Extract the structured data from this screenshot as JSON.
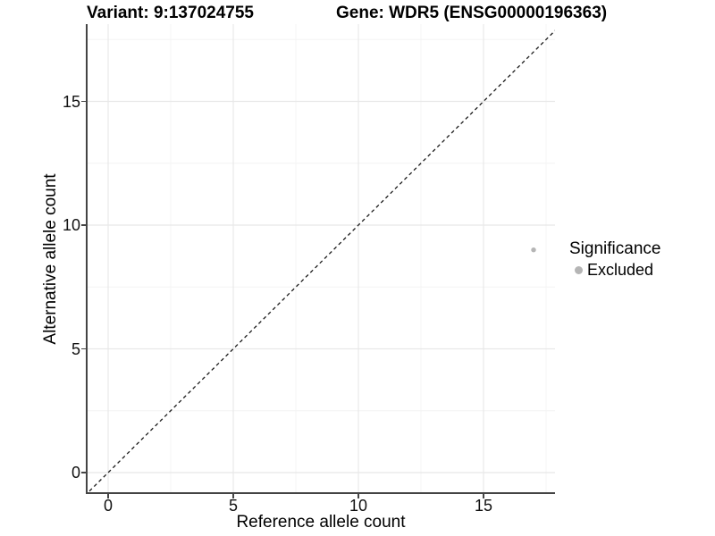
{
  "chart_data": {
    "type": "scatter",
    "titles": {
      "variant": "Variant: 9:137024755",
      "gene": "Gene: WDR5 (ENSG00000196363)"
    },
    "xlabel": "Reference allele count",
    "ylabel": "Alternative allele count",
    "x_ticks": [
      0,
      5,
      10,
      15
    ],
    "y_ticks": [
      0,
      5,
      10,
      15
    ],
    "x_minor_ticks": [
      2.5,
      7.5,
      12.5,
      17.5
    ],
    "y_minor_ticks": [
      2.5,
      7.5,
      12.5,
      17.5
    ],
    "xlim": [
      -0.9,
      17.9
    ],
    "ylim": [
      -0.9,
      18.1
    ],
    "grid": "major+minor",
    "points": [
      {
        "x": 17,
        "y": 9,
        "series": "Excluded"
      }
    ],
    "abline": {
      "slope": 1,
      "intercept": 0,
      "style": "dashed"
    },
    "legend": {
      "position": "right",
      "title": "Significance",
      "entries": [
        {
          "label": "Excluded",
          "color": "#b5b5b5"
        }
      ]
    }
  },
  "colors": {
    "background": "#ffffff",
    "grid_major": "#e8e8e8",
    "grid_minor": "#f4f4f4",
    "axis_line": "#444444",
    "tick_text": "#111111",
    "identity_line": "#1a1a1a",
    "point": "#b9b9b9"
  }
}
